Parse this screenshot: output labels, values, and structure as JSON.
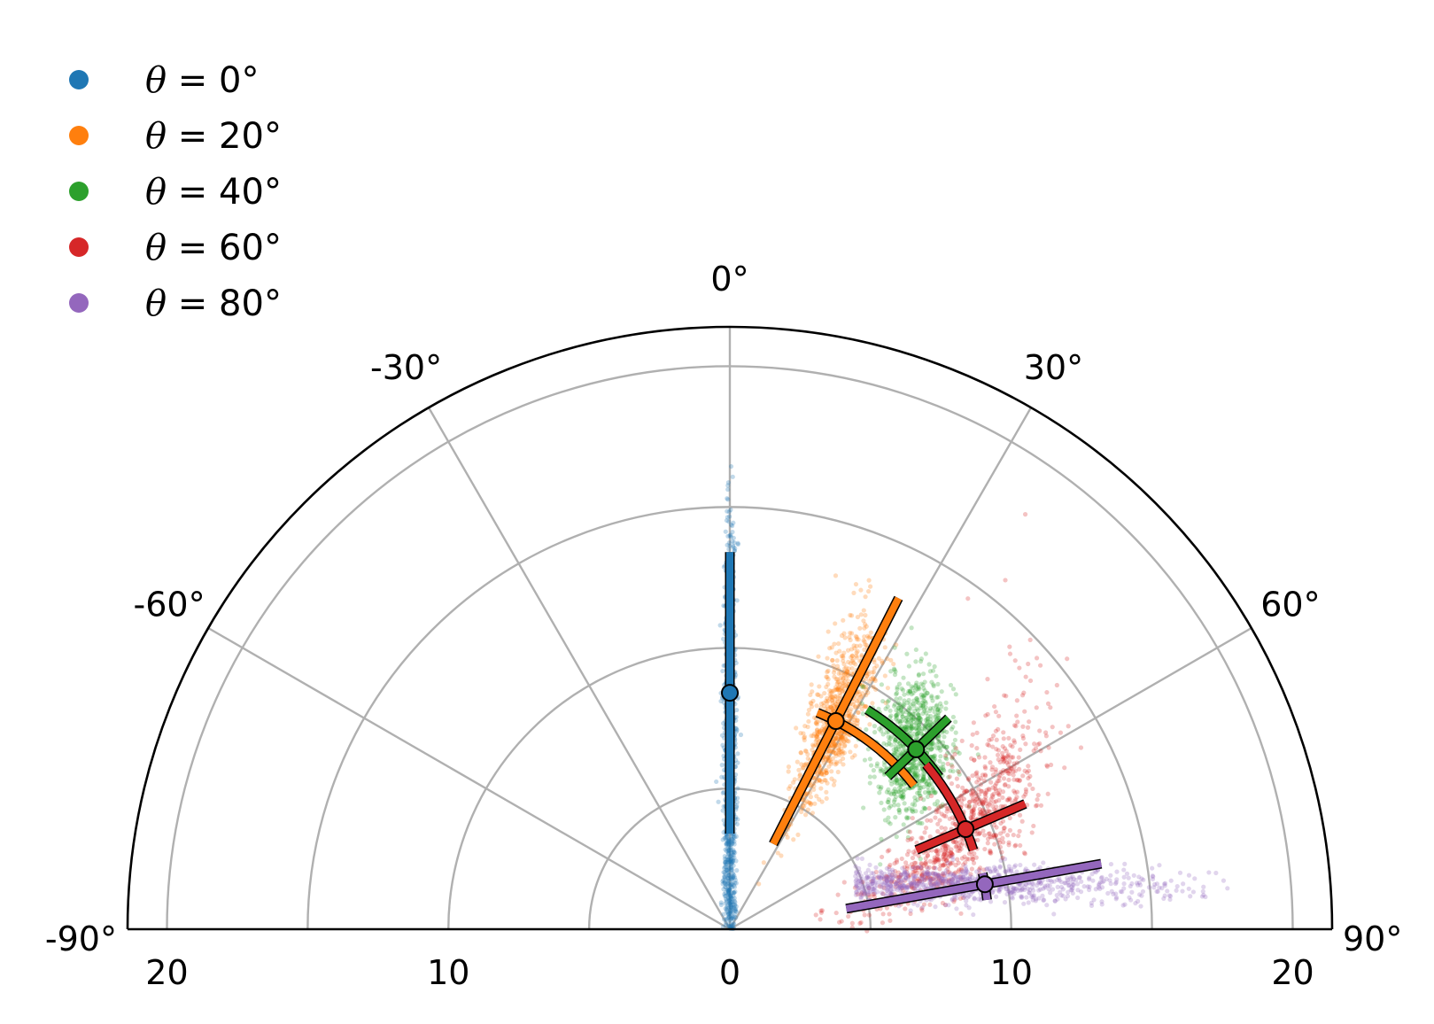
{
  "chart_data": {
    "type": "scatter",
    "projection": "polar-half",
    "angle_range_deg": [
      -90,
      90
    ],
    "angle_ticks": [
      "-90°",
      "-60°",
      "-30°",
      "0°",
      "30°",
      "60°",
      "90°"
    ],
    "angle_tick_values": [
      -90,
      -60,
      -30,
      0,
      30,
      60,
      90
    ],
    "radius_max": 21.4,
    "radius_grid": [
      5,
      10,
      15,
      20
    ],
    "radius_tick_labels": [
      "20",
      "10",
      "0",
      "10",
      "20"
    ],
    "radius_tick_values": [
      -20,
      -10,
      0,
      10,
      20
    ],
    "grid": true,
    "legend_position": "top-left",
    "series": [
      {
        "name": "θ = 0°",
        "legend_symbol": "θ",
        "legend_value": " = 0°",
        "color": "#1f77b4",
        "mean_r": 8.4,
        "mean_theta": 0,
        "r_range": [
          0,
          17
        ],
        "theta_spread": 0.4,
        "err_r": [
          3.4,
          13.4
        ],
        "err_theta": [
          -1.2,
          1.2
        ]
      },
      {
        "name": "θ = 20°",
        "legend_symbol": "θ",
        "legend_value": " = 20°",
        "color": "#ff7f0e",
        "mean_r": 8.3,
        "mean_theta": 27,
        "r_range": [
          6.5,
          15
        ],
        "theta_spread": 3,
        "err_r": [
          3.4,
          13.2
        ],
        "err_theta": [
          22,
          52
        ]
      },
      {
        "name": "θ = 40°",
        "legend_symbol": "θ",
        "legend_value": " = 40°",
        "color": "#2ca02c",
        "mean_r": 9.2,
        "mean_theta": 46,
        "r_range": [
          8,
          13
        ],
        "theta_spread": 5,
        "err_r": [
          7.8,
          10.8
        ],
        "err_theta": [
          32,
          54
        ]
      },
      {
        "name": "θ = 60°",
        "legend_symbol": "θ",
        "legend_value": " = 60°",
        "color": "#d62728",
        "mean_r": 9.1,
        "mean_theta": 67,
        "r_range": [
          6.5,
          17
        ],
        "theta_spread": 5,
        "err_r": [
          7.2,
          11.4
        ],
        "err_theta": [
          50,
          72
        ]
      },
      {
        "name": "θ = 80°",
        "legend_symbol": "θ",
        "legend_value": " = 80°",
        "color": "#9467bd",
        "mean_r": 9.2,
        "mean_theta": 80,
        "r_range": [
          2,
          16
        ],
        "theta_spread": 3,
        "err_r": [
          4.2,
          13.4
        ],
        "err_theta": [
          77.5,
          83.5
        ]
      }
    ]
  }
}
